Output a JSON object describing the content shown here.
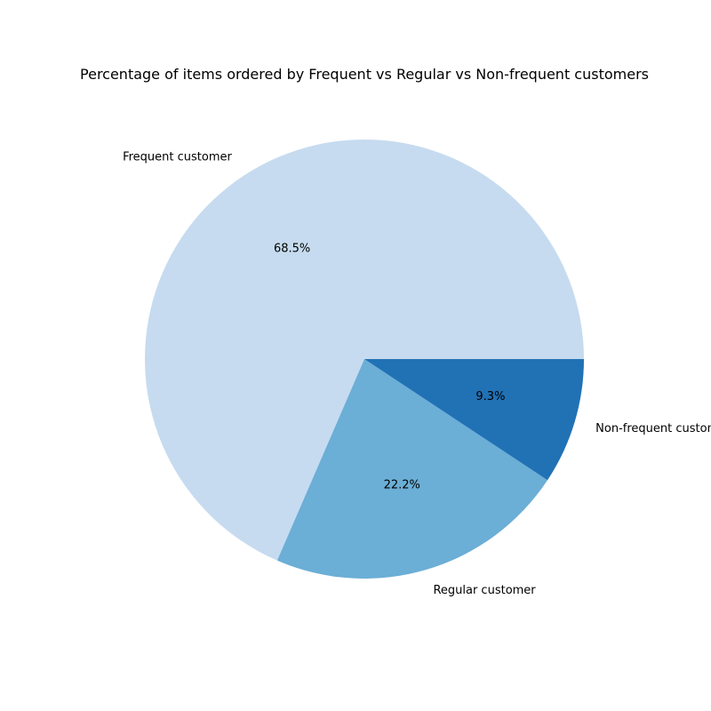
{
  "chart_data": {
    "type": "pie",
    "title": "Percentage of items ordered by Frequent vs Regular vs Non-frequent customers",
    "categories": [
      "Frequent customer",
      "Regular customer",
      "Non-frequent customer"
    ],
    "values": [
      68.5,
      22.2,
      9.3
    ],
    "labels": [
      "68.5%",
      "22.2%",
      "9.3%"
    ],
    "colors": [
      "#c6dbef",
      "#6baed6",
      "#2171b5"
    ],
    "start_angle": "0 degrees (3 o'clock)",
    "direction": "counterclockwise",
    "legend": "none"
  }
}
